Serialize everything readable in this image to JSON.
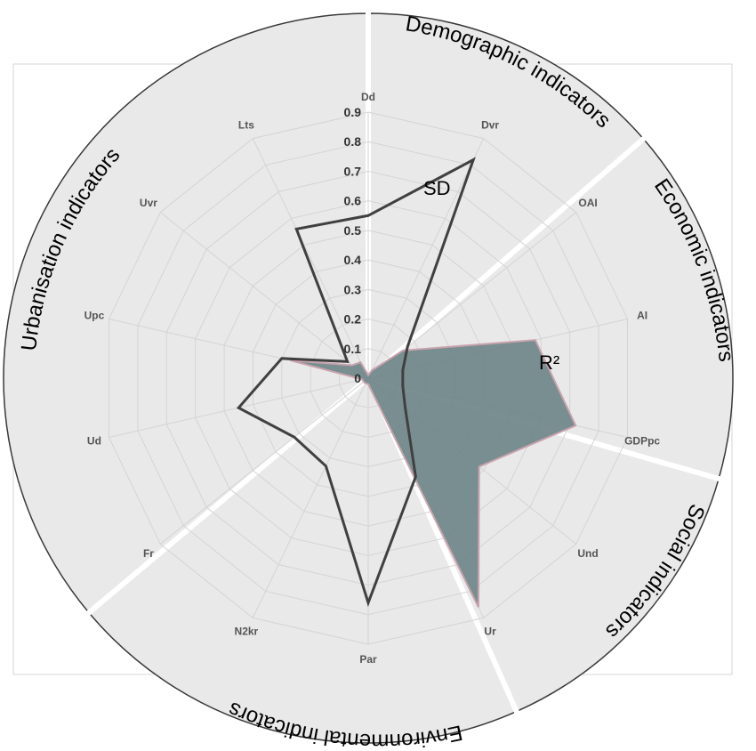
{
  "chart_data": {
    "type": "radar",
    "categories": [
      "Dd",
      "Dvr",
      "OAI",
      "AI",
      "GDPpc",
      "Und",
      "Ur",
      "Par",
      "N2kr",
      "Fr",
      "Ud",
      "Upc",
      "Uvr",
      "Lts"
    ],
    "r_ticks": [
      "0",
      "0.1",
      "0.2",
      "0.3",
      "0.4",
      "0.5",
      "0.6",
      "0.7",
      "0.8",
      "0.9"
    ],
    "rlim": [
      0,
      0.9
    ],
    "grid": true,
    "series": [
      {
        "name": "SD",
        "type": "line",
        "color": "#404040",
        "values": [
          0.55,
          0.82,
          0.17,
          0.12,
          0.12,
          0.16,
          0.37,
          0.76,
          0.33,
          0.32,
          0.45,
          0.3,
          0.09,
          0.56
        ]
      },
      {
        "name": "R²",
        "type": "area",
        "color": "#6e8688",
        "values": [
          0.01,
          0.03,
          0.15,
          0.58,
          0.72,
          0.48,
          0.86,
          0.02,
          0.02,
          0.02,
          0.02,
          0.27,
          0.07,
          0.06
        ]
      }
    ],
    "groups": [
      {
        "title": "Demographic indicators",
        "members": [
          "Dd",
          "Dvr"
        ]
      },
      {
        "title": "Economic indicators",
        "members": [
          "OAI",
          "AI",
          "GDPpc"
        ]
      },
      {
        "title": "Social indicators",
        "members": [
          "Und",
          "Ur"
        ]
      },
      {
        "title": "Environmental indicators",
        "members": [
          "Par",
          "N2kr",
          "Fr"
        ]
      },
      {
        "title": "Urbanisation indicators",
        "members": [
          "Ud",
          "Upc",
          "Uvr",
          "Lts"
        ]
      }
    ]
  },
  "group_titles": {
    "demographic": "Demographic indicators",
    "economic": "Economic indicators",
    "social": "Social indicators",
    "environmental": "Environmental indicators",
    "urbanisation": "Urbanisation indicators"
  },
  "series_labels": {
    "sd": "SD",
    "r2": "R²"
  }
}
